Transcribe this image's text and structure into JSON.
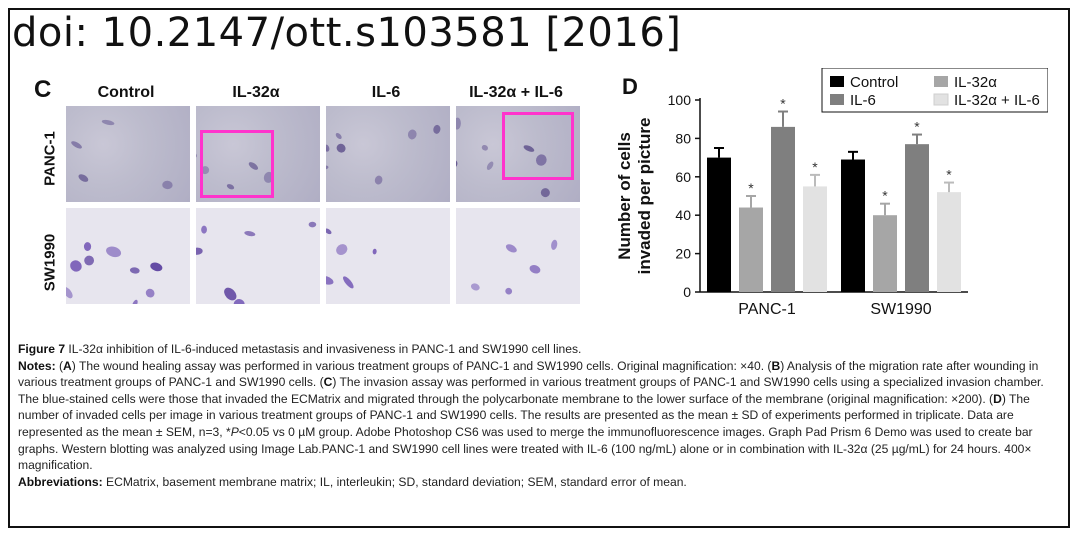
{
  "doi_header": "doi: 10.2147/ott.s103581 [2016]",
  "panel_c": {
    "letter": "C",
    "columns": [
      "Control",
      "IL-32α",
      "IL-6",
      "IL-32α + IL-6"
    ],
    "rows": [
      "PANC-1",
      "SW1990"
    ]
  },
  "chart_data": {
    "type": "bar",
    "panel_letter": "D",
    "categories": [
      "PANC-1",
      "SW1990"
    ],
    "ylabel": "Number of cells invaded per picture",
    "ylim": [
      0,
      100
    ],
    "yticks": [
      "0",
      "20",
      "40",
      "60",
      "80",
      "100"
    ],
    "grid": false,
    "legend_position": "top-right",
    "series": [
      {
        "name": "Control",
        "color": "#000000",
        "values": [
          70,
          69
        ],
        "errors": [
          5,
          4
        ],
        "marker": [
          "",
          ""
        ]
      },
      {
        "name": "IL-32α",
        "color": "#a6a6a6",
        "values": [
          44,
          40
        ],
        "errors": [
          6,
          6
        ],
        "marker": [
          "*",
          "*"
        ]
      },
      {
        "name": "IL-6",
        "color": "#7f7f7f",
        "values": [
          86,
          77
        ],
        "errors": [
          8,
          5
        ],
        "marker": [
          "*",
          "*"
        ]
      },
      {
        "name": "IL-32α + IL-6",
        "color": "#e2e2e2",
        "values": [
          55,
          52
        ],
        "errors": [
          6,
          5
        ],
        "marker": [
          "*",
          "*"
        ]
      }
    ]
  },
  "caption": {
    "figure_label": "Figure 7",
    "figure_title": "IL-32α inhibition of IL-6-induced metastasis and invasiveness in PANC-1 and SW1990 cell lines.",
    "notes_label": "Notes:",
    "notes_parts": [
      "(",
      "A",
      ") The wound healing assay was performed in various treatment groups of PANC-1 and SW1990 cells. Original magnification: ×40. (",
      "B",
      ") Analysis of the migration rate after wounding in various treatment groups of PANC-1 and SW1990 cells. (",
      "C",
      ") The invasion assay was performed in various treatment groups of PANC-1 and SW1990 cells using a specialized invasion chamber. The blue-stained cells were those that invaded the ECMatrix and migrated through the polycarbonate membrane to the lower surface of the membrane (original magnification: ×200). (",
      "D",
      ") The number of invaded cells per image in various treatment groups of PANC-1 and SW1990 cells. The results are presented as the mean ± SD of experiments performed in triplicate. Data are represented as the mean ± SEM, n=3, *",
      "P",
      "<0.05 vs 0 µM group. Adobe Photoshop CS6 was used to merge the immunofluorescence images. Graph Pad Prism 6 Demo was used to create bar graphs. Western blotting was analyzed using Image Lab.PANC-1 and SW1990 cell lines were treated with IL-6 (100 ng/mL) alone or in combination with IL-32α (25 µg/mL) for 24 hours. 400× magnification."
    ],
    "abbreviations_label": "Abbreviations:",
    "abbreviations_text": "ECMatrix, basement membrane matrix; IL, interleukin; SD, standard deviation; SEM, standard error of mean."
  }
}
